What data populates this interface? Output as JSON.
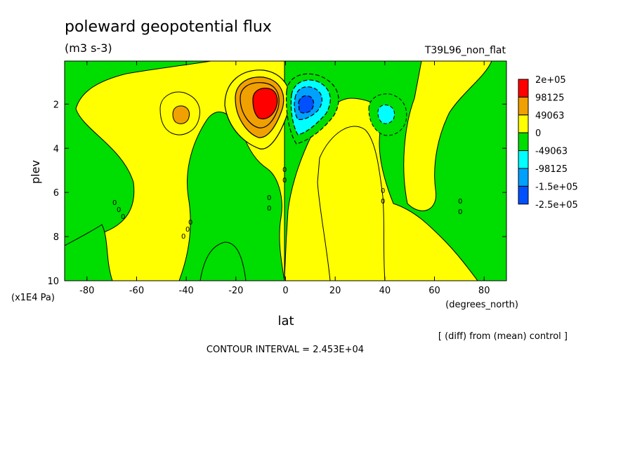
{
  "chart_data": {
    "type": "heatmap",
    "title": "poleward geopotential flux",
    "units": "(m3 s-3)",
    "experiment": "T39L96_non_flat",
    "xlabel": "lat",
    "x_units": "(degrees_north)",
    "ylabel": "plev",
    "y_units": "(x1E4 Pa)",
    "x_ticks": [
      -80,
      -60,
      -40,
      -20,
      0,
      20,
      40,
      60,
      80
    ],
    "y_ticks": [
      2,
      4,
      6,
      8,
      10
    ],
    "xlim": [
      -89,
      89
    ],
    "ylim": [
      10,
      0.05
    ],
    "note": "[ (diff) from (mean) control ]",
    "contour_interval": "CONTOUR INTERVAL = 2.453E+04",
    "zero_contour_label": "0",
    "colorbar": {
      "labels": [
        "2e+05",
        "98125",
        "49063",
        "0",
        "-49063",
        "-98125",
        "-1.5e+05",
        "-2.5e+05"
      ],
      "colors": [
        "#ff0000",
        "#f0a000",
        "#ffff00",
        "#00dd00",
        "#00ffff",
        "#00a0ff",
        "#0050ff"
      ]
    },
    "features": [
      {
        "lat": -8,
        "plev": 2.0,
        "value": 200000,
        "label": "max"
      },
      {
        "lat": 8,
        "plev": 2.2,
        "value": -200000,
        "label": "min"
      },
      {
        "lat": -42,
        "plev": 2.6,
        "value": 60000
      },
      {
        "lat": 42,
        "plev": 2.6,
        "value": -60000
      }
    ]
  }
}
